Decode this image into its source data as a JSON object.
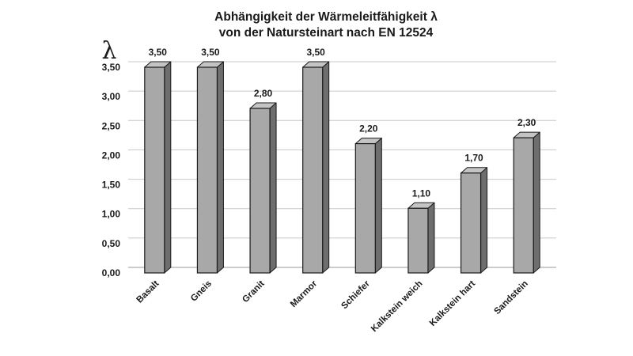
{
  "chart_data": {
    "type": "bar",
    "title_lines": [
      "Abhängigkeit der Wärmeleitfähigkeit λ",
      "von der Natursteinart nach EN 12524"
    ],
    "ylabel": "λ",
    "xlabel": "",
    "categories": [
      "Basalt",
      "Gneis",
      "Granit",
      "Marmor",
      "Schiefer",
      "Kalkstein weich",
      "Kalkstein hart",
      "Sandstein"
    ],
    "values": [
      3.5,
      3.5,
      2.8,
      3.5,
      2.2,
      1.1,
      1.7,
      2.3
    ],
    "data_labels": [
      "3,50",
      "3,50",
      "2,80",
      "3,50",
      "2,20",
      "1,10",
      "1,70",
      "2,30"
    ],
    "yticks": [
      "0,00",
      "0,50",
      "1,00",
      "1,50",
      "2,00",
      "2,50",
      "3,00",
      "3,50"
    ],
    "ylim": [
      0,
      3.5
    ],
    "grid": true,
    "legend": "none",
    "colors": {
      "bar_front": "#a8a8a8",
      "bar_side": "#6e6e6e",
      "bar_top": "#c4c4c4",
      "bar_edge": "#1a1a1a"
    }
  }
}
